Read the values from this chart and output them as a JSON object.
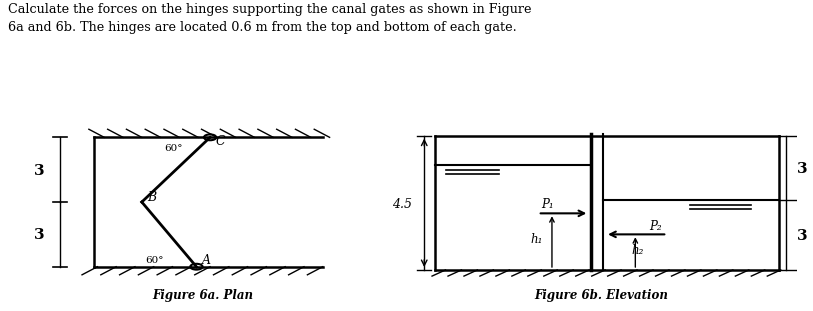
{
  "title_text": "Calculate the forces on the hinges supporting the canal gates as shown in Figure\n6a and 6b. The hinges are located 0.6 m from the top and bottom of each gate.",
  "fig6a_caption": "Figure 6a. Plan",
  "fig6b_caption": "Figure 6b. Elevation",
  "bg_color": "#ffffff",
  "line_color": "#000000"
}
